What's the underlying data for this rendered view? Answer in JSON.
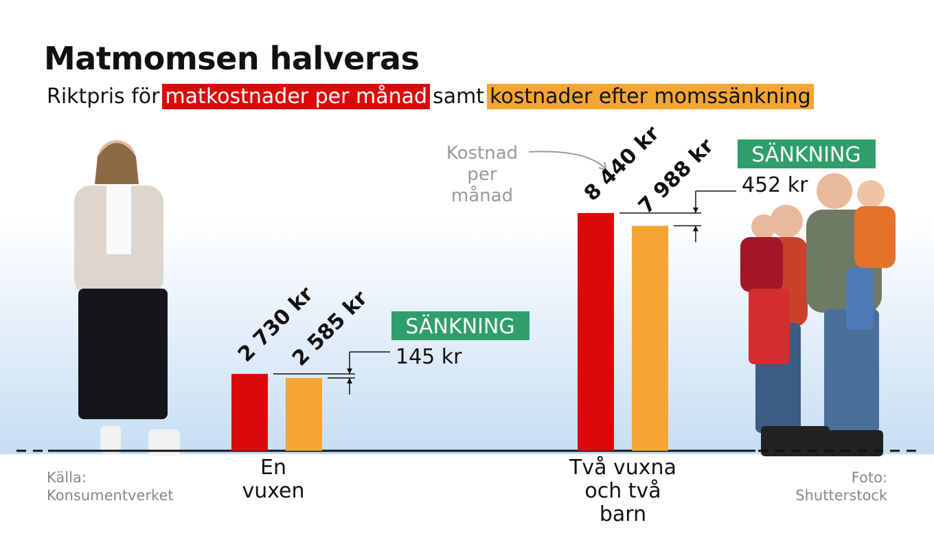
{
  "chart_data": {
    "type": "bar",
    "title": "Matmomsen halveras",
    "subtitle_prefix": "Riktpris för",
    "subtitle_joiner": "samt",
    "categories": [
      "En vuxen",
      "Två vuxna och två barn"
    ],
    "series": [
      {
        "name": "matkostnader per månad",
        "color": "#db0a0a",
        "values": [
          2730,
          8440
        ],
        "value_labels": [
          "2 730 kr",
          "8 440 kr"
        ]
      },
      {
        "name": "kostnader efter momssänkning",
        "color": "#f4a534",
        "values": [
          2585,
          7988
        ],
        "value_labels": [
          "2 585 kr",
          "7 988 kr"
        ]
      }
    ],
    "reductions": [
      {
        "label": "SÄNKNING",
        "value": 145,
        "value_label": "145 kr"
      },
      {
        "label": "SÄNKNING",
        "value": 452,
        "value_label": "452 kr"
      }
    ],
    "annotation": "Kostnad per månad",
    "source": "Källa: Konsumentverket",
    "credit": "Foto: Shutterstock"
  }
}
